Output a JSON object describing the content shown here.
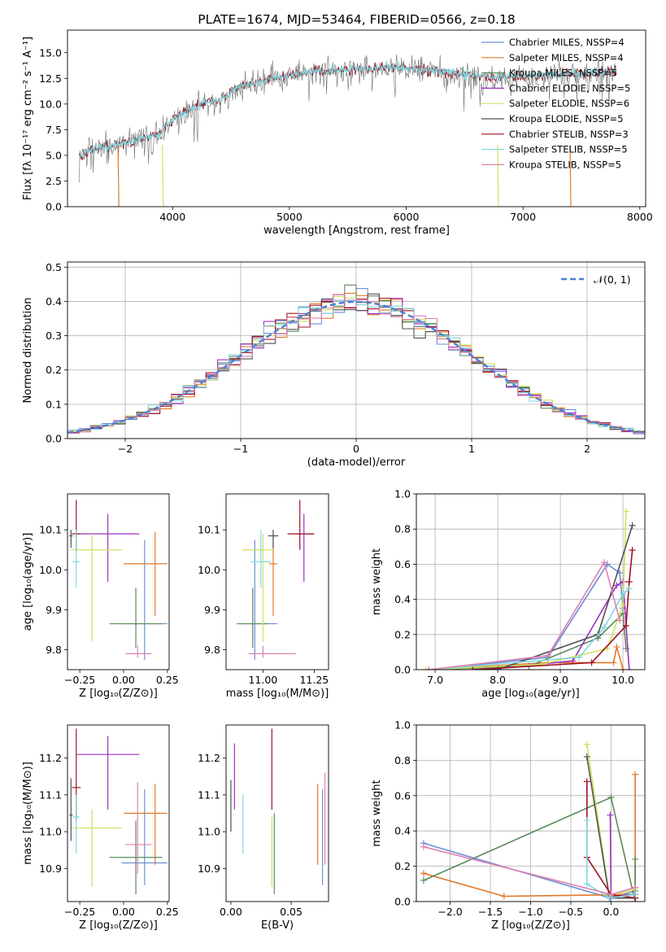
{
  "colors": [
    "#6a8fd8",
    "#e07a2a",
    "#5a8a5a",
    "#a030c0",
    "#d0e060",
    "#505050",
    "#a01020",
    "#80d8e0",
    "#e080b0"
  ],
  "chart_data": [
    {
      "id": "spectrum",
      "type": "line",
      "title": "PLATE=1674, MJD=53464, FIBERID=0566, z=0.18",
      "xlabel": "wavelength [Angstrom, rest frame]",
      "ylabel": "Flux [fλ 10⁻¹⁷ erg cm⁻² s⁻¹ A⁻¹]",
      "xlim": [
        3100,
        8050
      ],
      "ylim": [
        0,
        17.2
      ],
      "xticks": [
        4000,
        5000,
        6000,
        7000,
        8000
      ],
      "yticks": [
        0.0,
        2.5,
        5.0,
        7.5,
        10.0,
        12.5,
        15.0
      ],
      "legend_position": "top-right",
      "legend": [
        "Chabrier MILES, N_SSP=4",
        "Salpeter MILES, N_SSP=4",
        "Kroupa MILES, N_SSP=5",
        "Chabrier ELODIE, N_SSP=5",
        "Salpeter ELODIE, N_SSP=6",
        "Kroupa ELODIE, N_SSP=5",
        "Chabrier STELIB, N_SSP=3",
        "Salpeter STELIB, N_SSP=5",
        "Kroupa STELIB, N_SSP=5"
      ],
      "data_x": [
        3200,
        3300,
        3400,
        3500,
        3600,
        3700,
        3800,
        3900,
        4000,
        4100,
        4200,
        4300,
        4400,
        4500,
        4600,
        4800,
        5000,
        5200,
        5400,
        5600,
        5800,
        6000,
        6200,
        6400,
        6600,
        6800,
        7000,
        7200,
        7400,
        7600,
        7800
      ],
      "data_y": [
        4.8,
        5.5,
        5.8,
        6.0,
        6.2,
        6.5,
        6.8,
        7.2,
        8.5,
        9.2,
        9.8,
        10.2,
        10.3,
        11.2,
        11.8,
        12.3,
        12.8,
        13.2,
        13.3,
        13.4,
        13.6,
        13.5,
        13.3,
        13.0,
        12.8,
        12.6,
        12.7,
        12.8,
        13.0,
        13.0,
        13.2
      ],
      "noise_x": [
        3200,
        7800
      ]
    },
    {
      "id": "residuals",
      "type": "histogram",
      "xlabel": "(data-model)/error",
      "ylabel": "Normed distribution",
      "xlim": [
        -2.5,
        2.5
      ],
      "ylim": [
        0,
        0.515
      ],
      "xticks": [
        -2,
        -1,
        0,
        1,
        2
      ],
      "yticks": [
        0.0,
        0.1,
        0.2,
        0.3,
        0.4,
        0.5
      ],
      "grid": true,
      "legend_position": "top-right",
      "legend": [
        "𝒩(0, 1)"
      ],
      "bin_width": 0.1,
      "bin_range": [
        -2.5,
        2.5
      ]
    },
    {
      "id": "age-vs-z",
      "type": "errorbar",
      "xlabel": "Z [log₁₀(Z/Z⊙)]",
      "ylabel": "age  [log₁₀(age/yr)]",
      "xlim": [
        -0.32,
        0.26
      ],
      "ylim": [
        9.75,
        10.19
      ],
      "xticks": [
        -0.25,
        0.0,
        0.25
      ],
      "xtick_labels": [
        "−0.25",
        "0.00",
        "0.25"
      ],
      "yticks": [
        9.8,
        9.9,
        10.0,
        10.1
      ],
      "points": [
        {
          "x": 0.12,
          "xerr": [
            0.13,
            0.13
          ],
          "y": 9.865,
          "yerr": [
            0.09,
            0.21
          ]
        },
        {
          "x": 0.18,
          "xerr": [
            0.18,
            0.07
          ],
          "y": 10.015,
          "yerr": [
            0.13,
            0.08
          ]
        },
        {
          "x": 0.07,
          "xerr": [
            0.15,
            0.15
          ],
          "y": 9.865,
          "yerr": [
            0.06,
            0.09
          ]
        },
        {
          "x": -0.09,
          "xerr": [
            0.18,
            0.18
          ],
          "y": 10.09,
          "yerr": [
            0.12,
            0.05
          ]
        },
        {
          "x": -0.18,
          "xerr": [
            0.12,
            0.17
          ],
          "y": 10.05,
          "yerr": [
            0.23,
            0.04
          ]
        },
        {
          "x": -0.3,
          "xerr": [
            0.01,
            0.01
          ],
          "y": 10.085,
          "yerr": [
            0.03,
            0.015
          ]
        },
        {
          "x": -0.27,
          "xerr": [
            0.025,
            0.025
          ],
          "y": 10.09,
          "yerr": [
            0.04,
            0.085
          ]
        },
        {
          "x": -0.27,
          "xerr": [
            0.02,
            0.02
          ],
          "y": 10.02,
          "yerr": [
            0.065,
            0.08
          ]
        },
        {
          "x": 0.08,
          "xerr": [
            0.07,
            0.08
          ],
          "y": 9.79,
          "yerr": [
            0.01,
            0.02
          ]
        }
      ]
    },
    {
      "id": "age-vs-mass",
      "type": "errorbar",
      "xlabel": "mass [log₁₀(M/M⊙)]",
      "ylabel": "",
      "xlim": [
        10.82,
        11.32
      ],
      "ylim": [
        9.75,
        10.19
      ],
      "xticks": [
        11.0,
        11.25
      ],
      "xtick_labels": [
        "11.00",
        "11.25"
      ],
      "yticks": [
        9.8,
        9.9,
        10.0,
        10.1
      ],
      "points": [
        {
          "x": 10.96,
          "xerr": [
            0.09,
            0.11
          ],
          "y": 9.865,
          "yerr": [
            0.09,
            0.21
          ]
        },
        {
          "x": 11.05,
          "xerr": [
            0.02,
            0.02
          ],
          "y": 10.015,
          "yerr": [
            0.13,
            0.08
          ]
        },
        {
          "x": 10.95,
          "xerr": [
            0.07,
            0.07
          ],
          "y": 9.865,
          "yerr": [
            0.06,
            0.09
          ]
        },
        {
          "x": 11.2,
          "xerr": [
            0.05,
            0.05
          ],
          "y": 10.09,
          "yerr": [
            0.12,
            0.05
          ]
        },
        {
          "x": 11.0,
          "xerr": [
            0.1,
            0.05
          ],
          "y": 10.05,
          "yerr": [
            0.23,
            0.04
          ]
        },
        {
          "x": 11.05,
          "xerr": [
            0.025,
            0.025
          ],
          "y": 10.085,
          "yerr": [
            0.03,
            0.015
          ]
        },
        {
          "x": 11.18,
          "xerr": [
            0.06,
            0.07
          ],
          "y": 10.09,
          "yerr": [
            0.04,
            0.085
          ]
        },
        {
          "x": 10.99,
          "xerr": [
            0.05,
            0.05
          ],
          "y": 10.02,
          "yerr": [
            0.065,
            0.08
          ]
        },
        {
          "x": 11.0,
          "xerr": [
            0.07,
            0.16
          ],
          "y": 9.79,
          "yerr": [
            0.01,
            0.02
          ]
        }
      ]
    },
    {
      "id": "weight-vs-age",
      "type": "line",
      "xlabel": "age  [log₁₀(age/yr)]",
      "ylabel": "mass weight",
      "xlim": [
        6.7,
        10.35
      ],
      "ylim": [
        0,
        1.0
      ],
      "xticks": [
        7,
        8,
        9,
        10
      ],
      "yticks": [
        0.0,
        0.2,
        0.4,
        0.6,
        0.8,
        1.0
      ],
      "grid": true,
      "series": [
        {
          "x": [
            6.9,
            8.8,
            9.75,
            9.95,
            10.0
          ],
          "y": [
            0.0,
            0.07,
            0.6,
            0.55,
            0.35
          ]
        },
        {
          "x": [
            6.9,
            8.8,
            9.85,
            9.9,
            10.0
          ],
          "y": [
            0.0,
            0.04,
            0.04,
            0.13,
            0.0
          ]
        },
        {
          "x": [
            6.9,
            8.5,
            9.6,
            10.0,
            10.05
          ],
          "y": [
            0.0,
            0.02,
            0.18,
            0.32,
            0.12
          ]
        },
        {
          "x": [
            7.8,
            9.2,
            9.9,
            10.0,
            10.1
          ],
          "y": [
            0.0,
            0.05,
            0.48,
            0.5,
            0.0
          ]
        },
        {
          "x": [
            6.85,
            8.7,
            9.75,
            10.0,
            10.05
          ],
          "y": [
            0.0,
            0.03,
            0.12,
            0.37,
            0.9
          ]
        },
        {
          "x": [
            8.0,
            9.6,
            10.15
          ],
          "y": [
            0.0,
            0.2,
            0.82
          ]
        },
        {
          "x": [
            7.6,
            9.5,
            10.05,
            10.1,
            10.15
          ],
          "y": [
            0.0,
            0.04,
            0.25,
            0.5,
            0.68
          ]
        },
        {
          "x": [
            6.9,
            9.3,
            9.7,
            10.0,
            10.1
          ],
          "y": [
            0.0,
            0.07,
            0.24,
            0.43,
            0.46
          ]
        },
        {
          "x": [
            6.9,
            8.8,
            9.7,
            9.95
          ],
          "y": [
            0.0,
            0.08,
            0.61,
            0.28
          ]
        }
      ]
    },
    {
      "id": "mass-vs-z",
      "type": "errorbar",
      "xlabel": "Z [log₁₀(Z/Z⊙)]",
      "ylabel": "mass [log₁₀(M/M⊙)]",
      "xlim": [
        -0.32,
        0.26
      ],
      "ylim": [
        10.81,
        11.29
      ],
      "xticks": [
        -0.25,
        0.0,
        0.25
      ],
      "xtick_labels": [
        "−0.25",
        "0.00",
        "0.25"
      ],
      "yticks": [
        10.9,
        11.0,
        11.1,
        11.2
      ],
      "points": [
        {
          "x": 0.12,
          "xerr": [
            0.13,
            0.13
          ],
          "y": 10.915,
          "yerr": [
            0.06,
            0.2
          ]
        },
        {
          "x": 0.18,
          "xerr": [
            0.18,
            0.07
          ],
          "y": 11.05,
          "yerr": [
            0.14,
            0.08
          ]
        },
        {
          "x": 0.07,
          "xerr": [
            0.15,
            0.15
          ],
          "y": 10.93,
          "yerr": [
            0.1,
            0.1
          ]
        },
        {
          "x": -0.09,
          "xerr": [
            0.18,
            0.18
          ],
          "y": 11.21,
          "yerr": [
            0.15,
            0.05
          ]
        },
        {
          "x": -0.18,
          "xerr": [
            0.12,
            0.17
          ],
          "y": 11.01,
          "yerr": [
            0.16,
            0.05
          ]
        },
        {
          "x": -0.3,
          "xerr": [
            0.01,
            0.01
          ],
          "y": 11.045,
          "yerr": [
            0.07,
            0.1
          ]
        },
        {
          "x": -0.27,
          "xerr": [
            0.025,
            0.025
          ],
          "y": 11.12,
          "yerr": [
            0.09,
            0.16
          ]
        },
        {
          "x": -0.27,
          "xerr": [
            0.02,
            0.02
          ],
          "y": 11.04,
          "yerr": [
            0.1,
            0.06
          ]
        },
        {
          "x": 0.08,
          "xerr": [
            0.07,
            0.08
          ],
          "y": 10.965,
          "yerr": [
            0.08,
            0.17
          ]
        }
      ]
    },
    {
      "id": "mass-vs-ebv",
      "type": "errorbar",
      "xlabel": "E(B-V)",
      "ylabel": "",
      "xlim": [
        -0.004,
        0.081
      ],
      "ylim": [
        10.81,
        11.29
      ],
      "xticks": [
        0.0,
        0.05
      ],
      "xtick_labels": [
        "0.00",
        "0.05"
      ],
      "yticks": [
        10.9,
        11.0,
        11.1,
        11.2
      ],
      "points": [
        {
          "x": 0.076,
          "xerr": [
            0,
            0
          ],
          "y": 10.915,
          "yerr": [
            0.06,
            0.2
          ]
        },
        {
          "x": 0.072,
          "xerr": [
            0,
            0
          ],
          "y": 11.05,
          "yerr": [
            0.14,
            0.08
          ]
        },
        {
          "x": 0.036,
          "xerr": [
            0,
            0
          ],
          "y": 10.93,
          "yerr": [
            0.1,
            0.12
          ]
        },
        {
          "x": 0.003,
          "xerr": [
            0,
            0
          ],
          "y": 11.21,
          "yerr": [
            0.15,
            0.03
          ]
        },
        {
          "x": 0.034,
          "xerr": [
            0,
            0
          ],
          "y": 11.0,
          "yerr": [
            0.15,
            0.04
          ]
        },
        {
          "x": 0.0,
          "xerr": [
            0,
            0
          ],
          "y": 11.07,
          "yerr": [
            0.07,
            0.07
          ]
        },
        {
          "x": 0.034,
          "xerr": [
            0,
            0
          ],
          "y": 11.22,
          "yerr": [
            0.16,
            0.06
          ]
        },
        {
          "x": 0.01,
          "xerr": [
            0,
            0
          ],
          "y": 11.02,
          "yerr": [
            0.08,
            0.08
          ]
        },
        {
          "x": 0.078,
          "xerr": [
            0,
            0
          ],
          "y": 11.04,
          "yerr": [
            0.13,
            0.12
          ]
        }
      ]
    },
    {
      "id": "weight-vs-z",
      "type": "line",
      "xlabel": "Z [log₁₀(Z/Z⊙)]",
      "ylabel": "mass weight",
      "xlim": [
        -2.42,
        0.42
      ],
      "ylim": [
        0,
        1.0
      ],
      "xticks": [
        -2.0,
        -1.5,
        -1.0,
        -0.5,
        0.0
      ],
      "xtick_labels": [
        "−2.0",
        "−1.5",
        "−1.0",
        "−0.5",
        "0.0"
      ],
      "yticks": [
        0.0,
        0.2,
        0.4,
        0.6,
        0.8,
        1.0
      ],
      "grid": true,
      "series": [
        {
          "x": [
            -2.33,
            -0.01,
            0.3
          ],
          "y": [
            0.33,
            0.02,
            0.06
          ]
        },
        {
          "x": [
            -2.33,
            -1.33,
            0.3,
            0.3
          ],
          "y": [
            0.16,
            0.03,
            0.04,
            0.72
          ]
        },
        {
          "x": [
            -2.33,
            0.0,
            0.3,
            0.3
          ],
          "y": [
            0.12,
            0.59,
            0.0,
            0.24
          ]
        },
        {
          "x": [
            -0.01,
            0.0,
            0.3
          ],
          "y": [
            0.49,
            0.03,
            0.04
          ]
        },
        {
          "x": [
            -0.3,
            -0.02,
            0.3
          ],
          "y": [
            0.89,
            0.03,
            0.07
          ]
        },
        {
          "x": [
            -0.3,
            -0.02,
            0.3
          ],
          "y": [
            0.82,
            0.02,
            0.02
          ]
        },
        {
          "x": [
            -0.3,
            -0.3,
            0.0,
            0.3
          ],
          "y": [
            0.68,
            0.25,
            0.04,
            0.02
          ]
        },
        {
          "x": [
            -0.3,
            -0.3,
            -0.02,
            0.3
          ],
          "y": [
            0.46,
            0.1,
            0.02,
            0.04
          ]
        },
        {
          "x": [
            -2.33,
            0.0,
            0.3
          ],
          "y": [
            0.31,
            0.04,
            0.08
          ]
        }
      ]
    }
  ]
}
